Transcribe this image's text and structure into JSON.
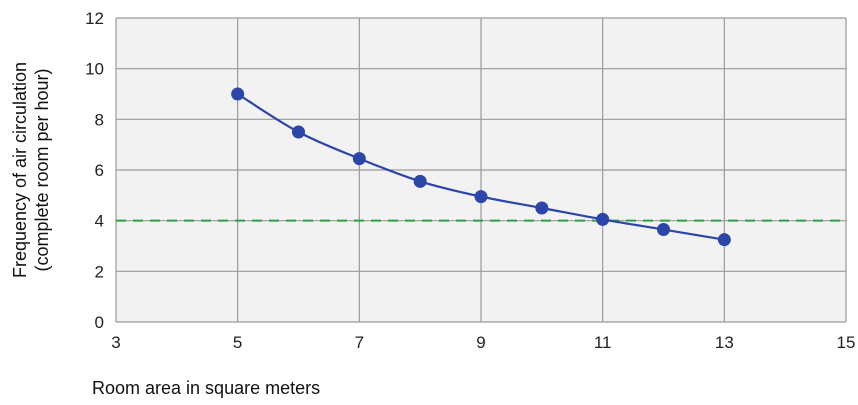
{
  "chart_data": {
    "type": "line",
    "xlabel": "Room area in square meters",
    "ylabel_lines": [
      "Frequency of air circulation",
      "(complete room per hour)"
    ],
    "xlim": [
      3,
      15
    ],
    "ylim": [
      0,
      12
    ],
    "xticks": [
      3,
      5,
      7,
      9,
      11,
      13,
      15
    ],
    "yticks": [
      0,
      2,
      4,
      6,
      8,
      10,
      12
    ],
    "grid": true,
    "series": [
      {
        "x": [
          5,
          6,
          7,
          8,
          9,
          10,
          11,
          12,
          13
        ],
        "y": [
          9.0,
          7.5,
          6.45,
          5.55,
          4.95,
          4.5,
          4.05,
          3.65,
          3.25
        ],
        "color": "#2b45a8"
      }
    ],
    "reference_line": {
      "y": 4,
      "style": "dashed",
      "color": "#2ea043"
    },
    "plot_background": "#f2f2f2",
    "grid_color": "#9a9a9a"
  }
}
